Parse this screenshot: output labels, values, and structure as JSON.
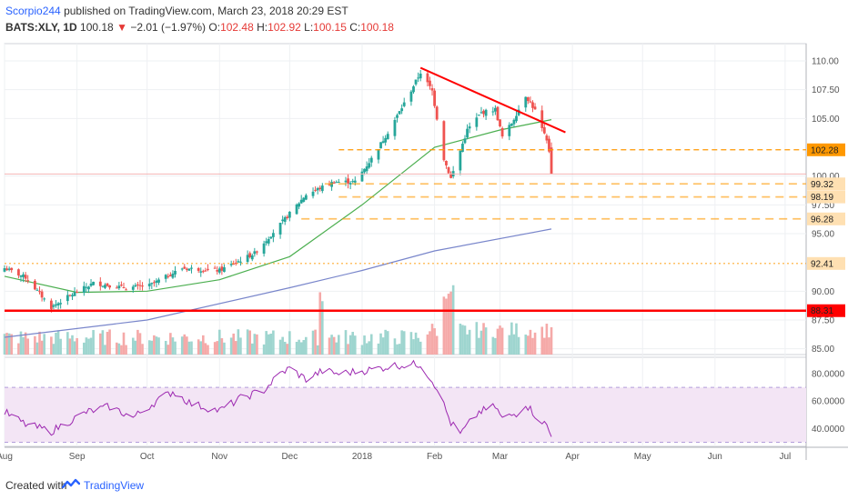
{
  "header": {
    "author": "Scorpio244",
    "published": "published on TradingView.com, March 23, 2018 20:29 EST",
    "symbol": "BATS:XLY, 1D",
    "last": "100.18",
    "change_arrow": "▼",
    "change": "−2.01 (−1.97%)",
    "o_label": "O:",
    "o_val": "102.48",
    "h_label": "H:",
    "h_val": "102.92",
    "l_label": "L:",
    "l_val": "100.15",
    "c_label": "C:",
    "c_val": "100.18"
  },
  "footer": {
    "created_with": "Created with",
    "brand": "TradingView"
  },
  "colors": {
    "up": "#26a69a",
    "down": "#ef5350",
    "ma_fast": "#4caf50",
    "ma_slow": "#7986cb",
    "resistance": "#ff0000",
    "level": "#ff9800",
    "rsi": "#9c27b0",
    "rsi_band": "#f3e5f5"
  },
  "chart_data": [
    {
      "type": "candlestick",
      "symbol": "BATS:XLY",
      "interval": "1D",
      "ylim": [
        84.5,
        111.5
      ],
      "y_ticks": [
        "110.00",
        "107.50",
        "105.00",
        "100.00",
        "97.50",
        "95.00",
        "90.00",
        "87.50",
        "85.00"
      ],
      "x_ticks": [
        "Aug",
        "Sep",
        "Oct",
        "Nov",
        "Dec",
        "2018",
        "Feb",
        "Mar",
        "Apr",
        "May",
        "Jun",
        "Jul"
      ],
      "x_tick_dates": [
        "2017-08-01",
        "2017-09-01",
        "2017-10-01",
        "2017-11-01",
        "2017-12-01",
        "2018-01-01",
        "2018-02-01",
        "2018-03-01",
        "2018-04-01",
        "2018-05-01",
        "2018-06-01",
        "2018-07-01"
      ],
      "date_range": [
        "2017-08-01",
        "2018-07-10"
      ],
      "last_date": "2018-03-23",
      "keypoints": [
        {
          "date": "2017-08-01",
          "close": 92.0
        },
        {
          "date": "2017-08-10",
          "close": 91.2
        },
        {
          "date": "2017-08-21",
          "close": 88.6
        },
        {
          "date": "2017-08-28",
          "close": 89.5
        },
        {
          "date": "2017-09-08",
          "close": 90.7
        },
        {
          "date": "2017-09-22",
          "close": 90.3
        },
        {
          "date": "2017-10-02",
          "close": 90.5
        },
        {
          "date": "2017-10-16",
          "close": 92.0
        },
        {
          "date": "2017-11-01",
          "close": 91.8
        },
        {
          "date": "2017-11-16",
          "close": 93.3
        },
        {
          "date": "2017-11-30",
          "close": 96.5
        },
        {
          "date": "2017-12-08",
          "close": 98.4
        },
        {
          "date": "2017-12-20",
          "close": 99.5
        },
        {
          "date": "2017-12-29",
          "close": 99.5
        },
        {
          "date": "2018-01-05",
          "close": 101.5
        },
        {
          "date": "2018-01-12",
          "close": 103.8
        },
        {
          "date": "2018-01-19",
          "close": 106.3
        },
        {
          "date": "2018-01-26",
          "close": 109.0
        },
        {
          "date": "2018-01-31",
          "close": 107.4
        },
        {
          "date": "2018-02-05",
          "close": 101.5
        },
        {
          "date": "2018-02-08",
          "close": 99.8
        },
        {
          "date": "2018-02-15",
          "close": 104.0
        },
        {
          "date": "2018-02-21",
          "close": 105.5
        },
        {
          "date": "2018-02-27",
          "close": 105.8
        },
        {
          "date": "2018-03-02",
          "close": 103.4
        },
        {
          "date": "2018-03-06",
          "close": 104.6
        },
        {
          "date": "2018-03-12",
          "close": 107.0
        },
        {
          "date": "2018-03-16",
          "close": 105.7
        },
        {
          "date": "2018-03-21",
          "close": 103.0
        },
        {
          "date": "2018-03-22",
          "close": 102.19
        },
        {
          "date": "2018-03-23",
          "close": 100.18
        }
      ],
      "ma_fast_keypoints": [
        {
          "date": "2017-08-01",
          "value": 91.3
        },
        {
          "date": "2017-09-01",
          "value": 89.9
        },
        {
          "date": "2017-10-01",
          "value": 90.0
        },
        {
          "date": "2017-11-01",
          "value": 91.0
        },
        {
          "date": "2017-12-01",
          "value": 93.0
        },
        {
          "date": "2018-01-01",
          "value": 97.5
        },
        {
          "date": "2018-02-01",
          "value": 102.5
        },
        {
          "date": "2018-03-01",
          "value": 104.0
        },
        {
          "date": "2018-03-23",
          "value": 104.9
        }
      ],
      "ma_slow_keypoints": [
        {
          "date": "2017-08-01",
          "value": 86.0
        },
        {
          "date": "2017-10-01",
          "value": 87.5
        },
        {
          "date": "2017-12-01",
          "value": 90.3
        },
        {
          "date": "2018-01-01",
          "value": 91.8
        },
        {
          "date": "2018-02-01",
          "value": 93.5
        },
        {
          "date": "2018-03-23",
          "value": 95.4
        }
      ],
      "resistance_line": {
        "start": {
          "date": "2018-01-26",
          "value": 109.4
        },
        "end": {
          "date": "2018-03-29",
          "value": 103.8
        }
      },
      "horizontal_levels": [
        {
          "label": "102.28",
          "value": 102.28,
          "from": "2017-12-22",
          "style": "dashed"
        },
        {
          "label": "99.32",
          "value": 99.32,
          "from": "2017-12-16",
          "style": "dashed"
        },
        {
          "label": "98.19",
          "value": 98.19,
          "from": "2017-12-22",
          "style": "dashed"
        },
        {
          "label": "96.28",
          "value": 96.28,
          "from": "2017-12-06",
          "style": "dashed"
        },
        {
          "label": "92.41",
          "value": 92.41,
          "from": "2017-08-01",
          "style": "dotted"
        },
        {
          "label": "88.31",
          "value": 88.31,
          "from": "2017-08-01",
          "style": "solid"
        }
      ],
      "last_price_value": 100.18,
      "volume_spike_dates": [
        "2018-02-05",
        "2018-02-06",
        "2018-02-09",
        "2017-12-15"
      ]
    },
    {
      "type": "line",
      "name": "RSI",
      "ylim": [
        27,
        92
      ],
      "y_ticks": [
        "80.0000",
        "60.0000",
        "40.0000"
      ],
      "band": [
        30,
        70
      ],
      "keypoints": [
        {
          "date": "2017-08-01",
          "value": 52
        },
        {
          "date": "2017-08-10",
          "value": 43
        },
        {
          "date": "2017-08-21",
          "value": 38
        },
        {
          "date": "2017-09-05",
          "value": 52
        },
        {
          "date": "2017-09-15",
          "value": 56
        },
        {
          "date": "2017-09-25",
          "value": 48
        },
        {
          "date": "2017-10-05",
          "value": 60
        },
        {
          "date": "2017-10-12",
          "value": 67
        },
        {
          "date": "2017-10-20",
          "value": 58
        },
        {
          "date": "2017-11-01",
          "value": 53
        },
        {
          "date": "2017-11-10",
          "value": 62
        },
        {
          "date": "2017-11-20",
          "value": 68
        },
        {
          "date": "2017-11-27",
          "value": 80
        },
        {
          "date": "2017-12-01",
          "value": 84
        },
        {
          "date": "2017-12-08",
          "value": 76
        },
        {
          "date": "2017-12-15",
          "value": 82
        },
        {
          "date": "2017-12-22",
          "value": 80
        },
        {
          "date": "2018-01-05",
          "value": 83
        },
        {
          "date": "2018-01-15",
          "value": 86
        },
        {
          "date": "2018-01-26",
          "value": 87
        },
        {
          "date": "2018-02-02",
          "value": 70
        },
        {
          "date": "2018-02-08",
          "value": 44
        },
        {
          "date": "2018-02-12",
          "value": 36
        },
        {
          "date": "2018-02-20",
          "value": 52
        },
        {
          "date": "2018-02-27",
          "value": 56
        },
        {
          "date": "2018-03-02",
          "value": 47
        },
        {
          "date": "2018-03-08",
          "value": 51
        },
        {
          "date": "2018-03-12",
          "value": 58
        },
        {
          "date": "2018-03-16",
          "value": 50
        },
        {
          "date": "2018-03-21",
          "value": 42
        },
        {
          "date": "2018-03-23",
          "value": 34
        }
      ]
    }
  ]
}
